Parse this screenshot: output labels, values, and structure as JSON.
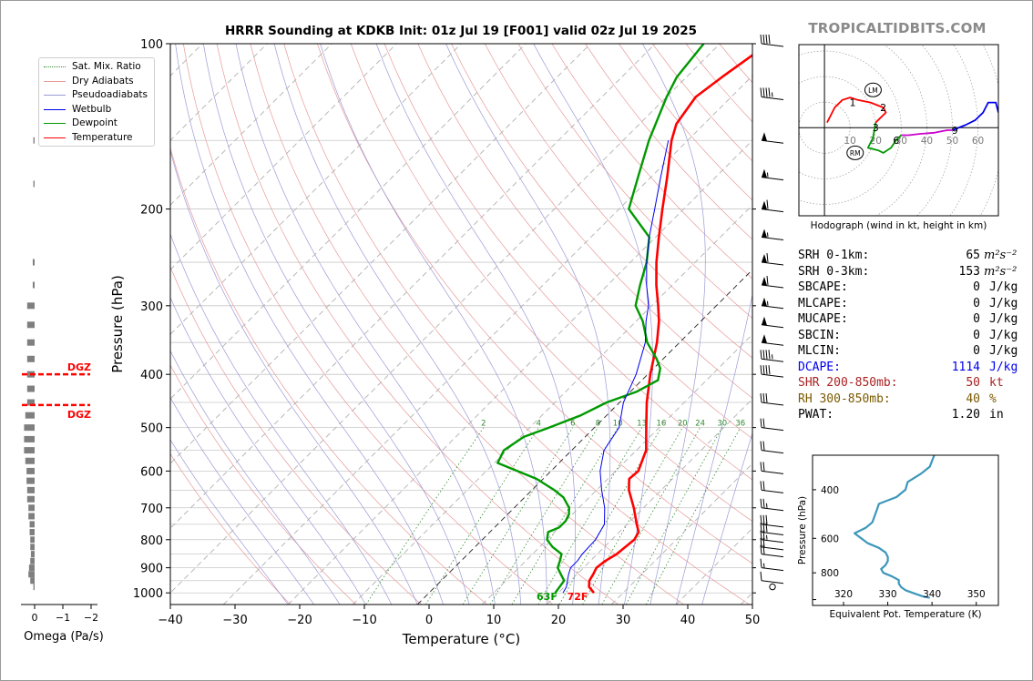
{
  "title": "HRRR Sounding at KDKB Init: 01z Jul 19 [F001] valid 02z Jul 19 2025",
  "site": "TROPICALTIDBITS.COM",
  "colors": {
    "temperature": "#ff0000",
    "dewpoint": "#009900",
    "wetbulb": "#0000ee",
    "theta_e": "#3d97bb",
    "isotherm": "#222222",
    "dry_adiabat": "#e89a9a",
    "moist_adiabat": "#9a9ad8",
    "mixing_ratio": "#2e8b2e",
    "dgz": "#ff0000",
    "stats_dcape": "#0000ee",
    "stats_shr": "#aa2222",
    "stats_rh": "#7a5a00",
    "site_text": "#8a8a8a"
  },
  "legend": {
    "entries": [
      {
        "name": "Sat. Mix. Ratio",
        "style": "mixing"
      },
      {
        "name": "Dry Adiabats",
        "style": "dry"
      },
      {
        "name": "Pseudoadiabats",
        "style": "moist"
      },
      {
        "name": "Wetbulb",
        "style": "wetbulb"
      },
      {
        "name": "Dewpoint",
        "style": "dewpoint"
      },
      {
        "name": "Temperature",
        "style": "temperature"
      }
    ]
  },
  "chart_data": [
    {
      "id": "skewt",
      "type": "line",
      "xlabel": "Temperature (°C)",
      "ylabel": "Pressure (hPa)",
      "xlim": [
        -40,
        50
      ],
      "ylim": [
        1050,
        100
      ],
      "yscale": "log",
      "x_ticks": [
        -40,
        -30,
        -20,
        -10,
        0,
        10,
        20,
        30,
        40,
        50
      ],
      "y_ticks": [
        100,
        200,
        300,
        400,
        500,
        600,
        700,
        800,
        900,
        1000
      ],
      "grid": true,
      "mixing_ratio_labels": [
        "2",
        "4",
        "6",
        "8",
        "10",
        "13",
        "16",
        "20",
        "24",
        "30",
        "36"
      ],
      "series": [
        {
          "name": "Temperature",
          "points": [
            [
              1000,
              25.5
            ],
            [
              975,
              23.8
            ],
            [
              950,
              22.9
            ],
            [
              925,
              22.5
            ],
            [
              900,
              22.0
            ],
            [
              875,
              22.3
            ],
            [
              850,
              23.0
            ],
            [
              800,
              23.5
            ],
            [
              775,
              23.0
            ],
            [
              750,
              21.5
            ],
            [
              700,
              18.5
            ],
            [
              650,
              15.0
            ],
            [
              620,
              13.3
            ],
            [
              600,
              13.5
            ],
            [
              550,
              11.5
            ],
            [
              500,
              8.0
            ],
            [
              450,
              4.2
            ],
            [
              400,
              0.4
            ],
            [
              350,
              -3.5
            ],
            [
              320,
              -6.5
            ],
            [
              300,
              -9.0
            ],
            [
              275,
              -12.5
            ],
            [
              250,
              -16.0
            ],
            [
              225,
              -19.5
            ],
            [
              200,
              -23.3
            ],
            [
              175,
              -27.5
            ],
            [
              150,
              -32.5
            ],
            [
              140,
              -34.3
            ],
            [
              125,
              -35.5
            ],
            [
              115,
              -34.5
            ],
            [
              100,
              -32.5
            ]
          ]
        },
        {
          "name": "Dewpoint",
          "points": [
            [
              1000,
              19.5
            ],
            [
              950,
              19.0
            ],
            [
              925,
              17.5
            ],
            [
              900,
              16.0
            ],
            [
              875,
              15.3
            ],
            [
              850,
              14.5
            ],
            [
              825,
              12.0
            ],
            [
              800,
              10.0
            ],
            [
              775,
              9.0
            ],
            [
              760,
              10.0
            ],
            [
              740,
              10.0
            ],
            [
              720,
              9.5
            ],
            [
              700,
              8.5
            ],
            [
              670,
              6.0
            ],
            [
              650,
              3.5
            ],
            [
              620,
              -1.0
            ],
            [
              580,
              -9.5
            ],
            [
              550,
              -10.5
            ],
            [
              520,
              -9.5
            ],
            [
              500,
              -7.0
            ],
            [
              475,
              -4.0
            ],
            [
              450,
              -2.0
            ],
            [
              430,
              1.0
            ],
            [
              410,
              2.5
            ],
            [
              390,
              1.0
            ],
            [
              375,
              -1.0
            ],
            [
              350,
              -5.0
            ],
            [
              320,
              -9.0
            ],
            [
              300,
              -12.5
            ],
            [
              275,
              -15.0
            ],
            [
              250,
              -17.5
            ],
            [
              225,
              -21.0
            ],
            [
              200,
              -28.5
            ],
            [
              175,
              -32.0
            ],
            [
              150,
              -36.0
            ],
            [
              125,
              -40.0
            ],
            [
              115,
              -41.5
            ],
            [
              100,
              -42.5
            ]
          ]
        },
        {
          "name": "Wetbulb",
          "points": [
            [
              1000,
              20.7
            ],
            [
              975,
              20.3
            ],
            [
              950,
              19.5
            ],
            [
              925,
              18.7
            ],
            [
              900,
              18.0
            ],
            [
              875,
              18.0
            ],
            [
              850,
              17.7
            ],
            [
              800,
              17.5
            ],
            [
              775,
              17.0
            ],
            [
              750,
              16.5
            ],
            [
              700,
              14.0
            ],
            [
              650,
              10.8
            ],
            [
              600,
              7.6
            ],
            [
              550,
              5.0
            ],
            [
              500,
              3.8
            ],
            [
              450,
              0.6
            ],
            [
              400,
              -1.8
            ],
            [
              350,
              -5.3
            ],
            [
              320,
              -8.5
            ],
            [
              300,
              -10.5
            ],
            [
              275,
              -14.0
            ],
            [
              250,
              -17.5
            ],
            [
              225,
              -21.0
            ],
            [
              200,
              -24.5
            ],
            [
              175,
              -28.5
            ],
            [
              150,
              -33.0
            ]
          ]
        }
      ],
      "annotations": [
        {
          "text": "63F",
          "color": "#009900"
        },
        {
          "text": "72F",
          "color": "#ff0000"
        },
        {
          "text": "DGZ",
          "color": "#ff0000",
          "pressure": 400
        },
        {
          "text": "DGZ",
          "color": "#ff0000",
          "pressure": 455
        }
      ],
      "wind_barbs": [
        {
          "p": 100,
          "speed": 40
        },
        {
          "p": 125,
          "speed": 45
        },
        {
          "p": 150,
          "speed": 50
        },
        {
          "p": 175,
          "speed": 55
        },
        {
          "p": 200,
          "speed": 60
        },
        {
          "p": 225,
          "speed": 55
        },
        {
          "p": 250,
          "speed": 60
        },
        {
          "p": 275,
          "speed": 60
        },
        {
          "p": 300,
          "speed": 55
        },
        {
          "p": 325,
          "speed": 50
        },
        {
          "p": 350,
          "speed": 50
        },
        {
          "p": 375,
          "speed": 45
        },
        {
          "p": 400,
          "speed": 40
        },
        {
          "p": 450,
          "speed": 30
        },
        {
          "p": 500,
          "speed": 20
        },
        {
          "p": 550,
          "speed": 20
        },
        {
          "p": 600,
          "speed": 20
        },
        {
          "p": 650,
          "speed": 20
        },
        {
          "p": 700,
          "speed": 25
        },
        {
          "p": 750,
          "speed": 30
        },
        {
          "p": 775,
          "speed": 30
        },
        {
          "p": 800,
          "speed": 25
        },
        {
          "p": 825,
          "speed": 20
        },
        {
          "p": 850,
          "speed": 20
        },
        {
          "p": 900,
          "speed": 15
        },
        {
          "p": 950,
          "speed": 10
        },
        {
          "p": 975,
          "speed": 0
        }
      ]
    },
    {
      "id": "omega",
      "type": "bar",
      "xlabel": "Omega (Pa/s)",
      "x_ticks": [
        "0",
        "−1",
        "−2"
      ],
      "xlim": [
        0.3,
        -2.2
      ],
      "values": [
        {
          "p": 150,
          "v": -0.02
        },
        {
          "p": 180,
          "v": -0.02
        },
        {
          "p": 250,
          "v": -0.03
        },
        {
          "p": 275,
          "v": -0.03
        },
        {
          "p": 300,
          "v": -0.12
        },
        {
          "p": 325,
          "v": -0.12
        },
        {
          "p": 350,
          "v": -0.12
        },
        {
          "p": 375,
          "v": -0.12
        },
        {
          "p": 400,
          "v": -0.12
        },
        {
          "p": 425,
          "v": -0.12
        },
        {
          "p": 450,
          "v": -0.12
        },
        {
          "p": 475,
          "v": -0.15
        },
        {
          "p": 500,
          "v": -0.17
        },
        {
          "p": 525,
          "v": -0.17
        },
        {
          "p": 550,
          "v": -0.17
        },
        {
          "p": 575,
          "v": -0.15
        },
        {
          "p": 600,
          "v": -0.13
        },
        {
          "p": 625,
          "v": -0.13
        },
        {
          "p": 650,
          "v": -0.12
        },
        {
          "p": 675,
          "v": -0.12
        },
        {
          "p": 700,
          "v": -0.1
        },
        {
          "p": 725,
          "v": -0.1
        },
        {
          "p": 750,
          "v": -0.08
        },
        {
          "p": 775,
          "v": -0.08
        },
        {
          "p": 800,
          "v": -0.07
        },
        {
          "p": 825,
          "v": -0.07
        },
        {
          "p": 850,
          "v": -0.06
        },
        {
          "p": 875,
          "v": -0.07
        },
        {
          "p": 900,
          "v": -0.09
        },
        {
          "p": 925,
          "v": -0.1
        },
        {
          "p": 950,
          "v": -0.07
        },
        {
          "p": 975,
          "v": -0.02
        }
      ]
    },
    {
      "id": "hodograph",
      "type": "line",
      "caption": "Hodograph (wind in kt, height in km)",
      "rings": [
        "10",
        "20",
        "30",
        "40",
        "50",
        "60"
      ],
      "xlim": [
        -10,
        68
      ],
      "ylim": [
        -35,
        33
      ],
      "segments": [
        {
          "color": "#ff0000",
          "points": [
            [
              1,
              2
            ],
            [
              2,
              4
            ],
            [
              4,
              8
            ],
            [
              7,
              11
            ],
            [
              10,
              12
            ],
            [
              13,
              11
            ],
            [
              18,
              10
            ],
            [
              23,
              8
            ],
            [
              24,
              6
            ],
            [
              22,
              4
            ],
            [
              20,
              2
            ]
          ]
        },
        {
          "color": "#009900",
          "points": [
            [
              20,
              2
            ],
            [
              19,
              -4
            ],
            [
              17,
              -8
            ],
            [
              21,
              -9
            ],
            [
              23,
              -10
            ],
            [
              26,
              -8
            ],
            [
              28,
              -5
            ],
            [
              30,
              -3
            ]
          ]
        },
        {
          "color": "#cc00cc",
          "points": [
            [
              30,
              -3
            ],
            [
              33,
              -3
            ],
            [
              37,
              -2.5
            ],
            [
              43,
              -2
            ],
            [
              48,
              -1
            ],
            [
              50,
              -1
            ]
          ]
        },
        {
          "color": "#0000ee",
          "points": [
            [
              50,
              -1
            ],
            [
              55,
              1
            ],
            [
              59,
              3
            ],
            [
              62,
              6
            ],
            [
              64,
              10
            ],
            [
              67,
              10
            ],
            [
              68,
              6
            ]
          ]
        }
      ],
      "height_labels": [
        {
          "text": "1",
          "u": 11,
          "v": 10
        },
        {
          "text": "2",
          "u": 23,
          "v": 8
        },
        {
          "text": "3",
          "u": 20,
          "v": 0
        },
        {
          "text": "6",
          "u": 28,
          "v": -5
        },
        {
          "text": "9",
          "u": 51,
          "v": -1
        }
      ],
      "markers": [
        {
          "text": "LM",
          "u": 19,
          "v": 15
        },
        {
          "text": "RM",
          "u": 12,
          "v": -10
        }
      ]
    },
    {
      "id": "theta_e",
      "type": "line",
      "xlabel": "Equivalent Pot. Temperature (K)",
      "ylabel": "Pressure (hPa)",
      "x_ticks": [
        320,
        330,
        340,
        350
      ],
      "y_ticks": [
        400,
        600,
        800
      ],
      "xlim": [
        313,
        355
      ],
      "ylim": [
        1050,
        300
      ],
      "series": [
        {
          "name": "theta_e",
          "points": [
            [
              300,
              340.5
            ],
            [
              330,
              339.5
            ],
            [
              350,
              337.5
            ],
            [
              375,
              334.5
            ],
            [
              400,
              334.0
            ],
            [
              425,
              332.0
            ],
            [
              450,
              328.0
            ],
            [
              475,
              327.5
            ],
            [
              500,
              327.0
            ],
            [
              525,
              326.5
            ],
            [
              550,
              325.0
            ],
            [
              575,
              322.5
            ],
            [
              600,
              324.0
            ],
            [
              625,
              325.5
            ],
            [
              650,
              328.0
            ],
            [
              675,
              329.5
            ],
            [
              700,
              330.0
            ],
            [
              725,
              330.0
            ],
            [
              750,
              329.5
            ],
            [
              775,
              328.5
            ],
            [
              800,
              329.0
            ],
            [
              825,
              331.0
            ],
            [
              850,
              332.5
            ],
            [
              875,
              332.5
            ],
            [
              900,
              333.0
            ],
            [
              925,
              334.0
            ],
            [
              950,
              336.0
            ],
            [
              975,
              338.0
            ],
            [
              985,
              339.5
            ]
          ]
        }
      ]
    }
  ],
  "stats": [
    {
      "label": "SRH 0-1km:",
      "value": "65",
      "unit": "m²s⁻²",
      "color": "#000000"
    },
    {
      "label": "SRH 0-3km:",
      "value": "153",
      "unit": "m²s⁻²",
      "color": "#000000"
    },
    {
      "label": "SBCAPE:",
      "value": "0",
      "unit": "J/kg",
      "color": "#000000"
    },
    {
      "label": "MLCAPE:",
      "value": "0",
      "unit": "J/kg",
      "color": "#000000"
    },
    {
      "label": "MUCAPE:",
      "value": "0",
      "unit": "J/kg",
      "color": "#000000"
    },
    {
      "label": "SBCIN:",
      "value": "0",
      "unit": "J/kg",
      "color": "#000000"
    },
    {
      "label": "MLCIN:",
      "value": "0",
      "unit": "J/kg",
      "color": "#000000"
    },
    {
      "label": "DCAPE:",
      "value": "1114",
      "unit": "J/kg",
      "color": "#0000ee"
    },
    {
      "label": "SHR 200-850mb:",
      "value": "50",
      "unit": "kt",
      "color": "#aa2222"
    },
    {
      "label": "RH 300-850mb:",
      "value": "40",
      "unit": "%",
      "color": "#7a5a00"
    },
    {
      "label": "PWAT:",
      "value": "1.20",
      "unit": "in",
      "color": "#000000"
    }
  ]
}
